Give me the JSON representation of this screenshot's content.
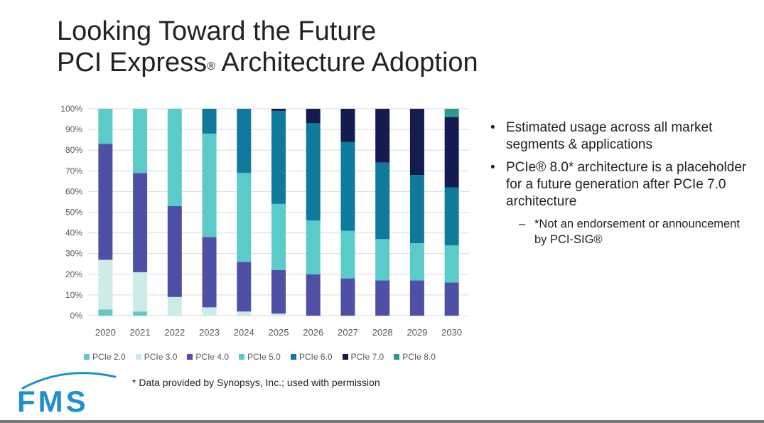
{
  "slide": {
    "title_line1": "Looking Toward the Future",
    "title_line2_pre": "PCI Express",
    "title_line2_reg": "®",
    "title_line2_post": " Architecture Adoption",
    "footnote": "* Data provided by Synopsys, Inc.; used with permission",
    "logo_text": "FMS",
    "bullets": [
      "Estimated usage across all market segments & applications",
      "PCIe® 8.0* architecture is a placeholder for a future generation after PCIe 7.0 architecture"
    ],
    "sub_bullet": "*Not an endorsement or announcement by PCI-SIG®"
  },
  "colors": {
    "PCIe 2.0": "#62c8c2",
    "PCIe 3.0": "#cdebe7",
    "PCIe 4.0": "#4e50a5",
    "PCIe 5.0": "#5bcbc9",
    "PCIe 6.0": "#0f7a9b",
    "PCIe 7.0": "#141b4f",
    "PCIe 8.0": "#2a9a8c"
  },
  "chart_data": {
    "type": "bar",
    "stacked": true,
    "categories": [
      "2020",
      "2021",
      "2022",
      "2023",
      "2024",
      "2025",
      "2026",
      "2027",
      "2028",
      "2029",
      "2030"
    ],
    "ylim": [
      0,
      100
    ],
    "yticks": [
      "0%",
      "10%",
      "20%",
      "30%",
      "40%",
      "50%",
      "60%",
      "70%",
      "80%",
      "90%",
      "100%"
    ],
    "legend_position": "bottom",
    "series": [
      {
        "name": "PCIe 2.0",
        "values": [
          3,
          2,
          0,
          0,
          0,
          0,
          0,
          0,
          0,
          0,
          0
        ]
      },
      {
        "name": "PCIe 3.0",
        "values": [
          24,
          19,
          9,
          4,
          2,
          1,
          0,
          0,
          0,
          0,
          0
        ]
      },
      {
        "name": "PCIe 4.0",
        "values": [
          56,
          48,
          44,
          34,
          24,
          21,
          20,
          18,
          17,
          17,
          16
        ]
      },
      {
        "name": "PCIe 5.0",
        "values": [
          17,
          31,
          47,
          50,
          43,
          32,
          26,
          23,
          20,
          18,
          18
        ]
      },
      {
        "name": "PCIe 6.0",
        "values": [
          0,
          0,
          0,
          12,
          31,
          45,
          47,
          43,
          37,
          33,
          28
        ]
      },
      {
        "name": "PCIe 7.0",
        "values": [
          0,
          0,
          0,
          0,
          0,
          1,
          7,
          16,
          26,
          32,
          34
        ]
      },
      {
        "name": "PCIe 8.0",
        "values": [
          0,
          0,
          0,
          0,
          0,
          0,
          0,
          0,
          0,
          0,
          4
        ]
      }
    ]
  }
}
